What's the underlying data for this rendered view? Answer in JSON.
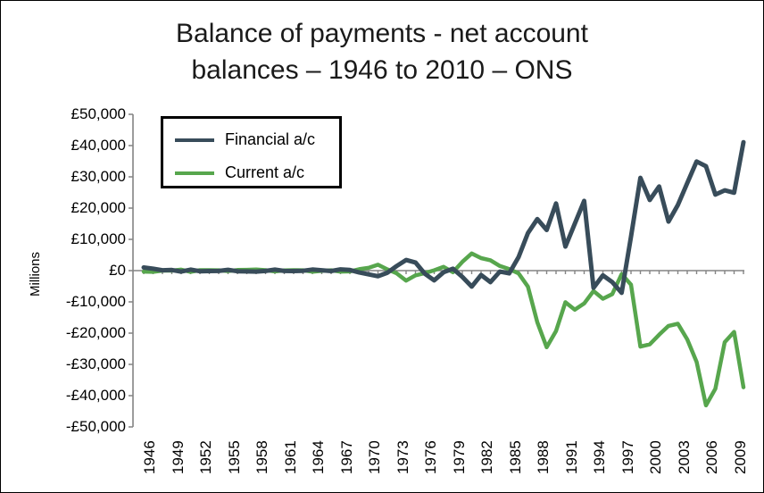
{
  "title": {
    "line1": "Balance of payments - net account",
    "line2": "balances – 1946 to 2010 – ONS"
  },
  "y_axis": {
    "title": "Millions",
    "tick_labels": [
      "£50,000",
      "£40,000",
      "£30,000",
      "£20,000",
      "£10,000",
      "£0",
      "-£10,000",
      "-£20,000",
      "-£30,000",
      "-£40,000",
      "-£50,000"
    ],
    "tick_values": [
      50000,
      40000,
      30000,
      20000,
      10000,
      0,
      -10000,
      -20000,
      -30000,
      -40000,
      -50000
    ]
  },
  "x_axis": {
    "tick_labels": [
      "1946",
      "1949",
      "1952",
      "1955",
      "1958",
      "1961",
      "1964",
      "1967",
      "1970",
      "1973",
      "1976",
      "1979",
      "1982",
      "1985",
      "1988",
      "1991",
      "1994",
      "1997",
      "2000",
      "2003",
      "2006",
      "2009"
    ],
    "label_step": 3
  },
  "legend": {
    "items": [
      {
        "label": "Financial a/c",
        "color": "#384c5a"
      },
      {
        "label": "Current a/c",
        "color": "#57a64d"
      }
    ]
  },
  "colors": {
    "axis": "#848484",
    "financial_line": "#384c5a",
    "current_line": "#57a64d"
  },
  "chart_data": {
    "type": "line",
    "title": "Balance of payments - net account balances – 1946 to 2010 – ONS",
    "xlabel": "",
    "ylabel": "Millions",
    "ylim": [
      -50000,
      50000
    ],
    "y_step": 10000,
    "grid": false,
    "legend_position": "top-left",
    "x": [
      1946,
      1947,
      1948,
      1949,
      1950,
      1951,
      1952,
      1953,
      1954,
      1955,
      1956,
      1957,
      1958,
      1959,
      1960,
      1961,
      1962,
      1963,
      1964,
      1965,
      1966,
      1967,
      1968,
      1969,
      1970,
      1971,
      1972,
      1973,
      1974,
      1975,
      1976,
      1977,
      1978,
      1979,
      1980,
      1981,
      1982,
      1983,
      1984,
      1985,
      1986,
      1987,
      1988,
      1989,
      1990,
      1991,
      1992,
      1993,
      1994,
      1995,
      1996,
      1997,
      1998,
      1999,
      2000,
      2001,
      2002,
      2003,
      2004,
      2005,
      2006,
      2007,
      2008,
      2009,
      2010
    ],
    "series": [
      {
        "name": "Financial a/c",
        "color": "#384c5a",
        "values": [
          1000,
          600,
          100,
          200,
          -300,
          300,
          -200,
          -150,
          -100,
          250,
          -200,
          -250,
          -300,
          -100,
          300,
          -100,
          -150,
          -50,
          350,
          100,
          -150,
          400,
          200,
          -600,
          -1200,
          -1800,
          -700,
          1500,
          3400,
          2600,
          -1000,
          -3100,
          -500,
          600,
          -2000,
          -5100,
          -1400,
          -3700,
          -300,
          -900,
          4300,
          12000,
          16500,
          13000,
          21500,
          7700,
          15000,
          22300,
          -5500,
          -1500,
          -3700,
          -7100,
          10900,
          29700,
          22600,
          26900,
          15700,
          21000,
          28000,
          34900,
          33400,
          24300,
          25700,
          24900,
          41100
        ]
      },
      {
        "name": "Current a/c",
        "color": "#57a64d",
        "values": [
          -300,
          -400,
          0,
          0,
          300,
          -400,
          150,
          150,
          100,
          -150,
          200,
          250,
          350,
          150,
          -250,
          50,
          150,
          100,
          -350,
          -50,
          100,
          -300,
          -250,
          450,
          900,
          1900,
          400,
          -900,
          -3200,
          -1500,
          -800,
          100,
          1200,
          -500,
          2800,
          5500,
          4000,
          3300,
          1500,
          500,
          -900,
          -5100,
          -16500,
          -24500,
          -19300,
          -10100,
          -12500,
          -10500,
          -6500,
          -9000,
          -7500,
          -1100,
          -4500,
          -24300,
          -23600,
          -20500,
          -17700,
          -17000,
          -22000,
          -29200,
          -43100,
          -37800,
          -22900,
          -19600,
          -37300
        ]
      }
    ]
  }
}
